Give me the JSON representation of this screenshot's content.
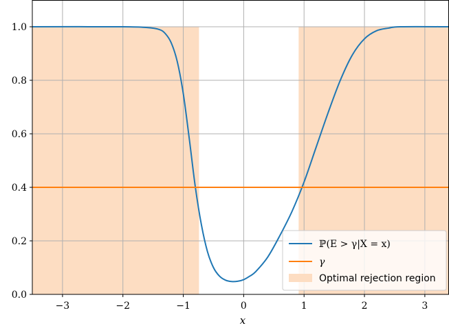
{
  "chart_data": {
    "type": "line",
    "xlabel": "x",
    "ylabel": "",
    "xlim": [
      -3.5,
      3.4
    ],
    "ylim": [
      0.0,
      1.1
    ],
    "grid": true,
    "legend_position": "lower-right",
    "x_ticks": [
      -3,
      -2,
      -1,
      0,
      1,
      2,
      3
    ],
    "x_tick_labels": [
      "−3",
      "−2",
      "−1",
      "0",
      "1",
      "2",
      "3"
    ],
    "y_ticks": [
      0.0,
      0.2,
      0.4,
      0.6,
      0.8,
      1.0
    ],
    "y_tick_labels": [
      "0.0",
      "0.2",
      "0.4",
      "0.6",
      "0.8",
      "1.0"
    ],
    "series": [
      {
        "name": "ℙ(E > γ|X = x)",
        "color": "#1f77b4",
        "x": [
          -3.5,
          -2.0,
          -1.6,
          -1.4,
          -1.3,
          -1.2,
          -1.1,
          -1.0,
          -0.9,
          -0.8,
          -0.7,
          -0.6,
          -0.5,
          -0.4,
          -0.3,
          -0.2,
          -0.1,
          0.0,
          0.1,
          0.2,
          0.4,
          0.6,
          0.8,
          1.0,
          1.2,
          1.4,
          1.6,
          1.8,
          2.0,
          2.2,
          2.4,
          2.6,
          3.4
        ],
        "y": [
          1.0,
          1.0,
          0.997,
          0.99,
          0.975,
          0.94,
          0.87,
          0.75,
          0.58,
          0.4,
          0.26,
          0.16,
          0.1,
          0.068,
          0.053,
          0.048,
          0.049,
          0.055,
          0.068,
          0.085,
          0.14,
          0.22,
          0.31,
          0.42,
          0.55,
          0.68,
          0.8,
          0.895,
          0.955,
          0.985,
          0.995,
          1.0,
          1.0
        ]
      },
      {
        "name": "γ",
        "color": "#ff7f0e",
        "x": [
          -3.5,
          3.4
        ],
        "y": [
          0.4,
          0.4
        ]
      }
    ],
    "regions": [
      {
        "name": "Optimal rejection region",
        "color": "#fdddc2",
        "x_start": -3.5,
        "x_end": -0.74,
        "y_start": 0.0,
        "y_end": 1.0
      },
      {
        "name": "Optimal rejection region",
        "color": "#fdddc2",
        "x_start": 0.91,
        "x_end": 3.4,
        "y_start": 0.0,
        "y_end": 1.0
      }
    ]
  },
  "legend": {
    "entry_1": "ℙ(E > γ|X = x)",
    "entry_2": "γ",
    "entry_3": "Optimal rejection region"
  }
}
